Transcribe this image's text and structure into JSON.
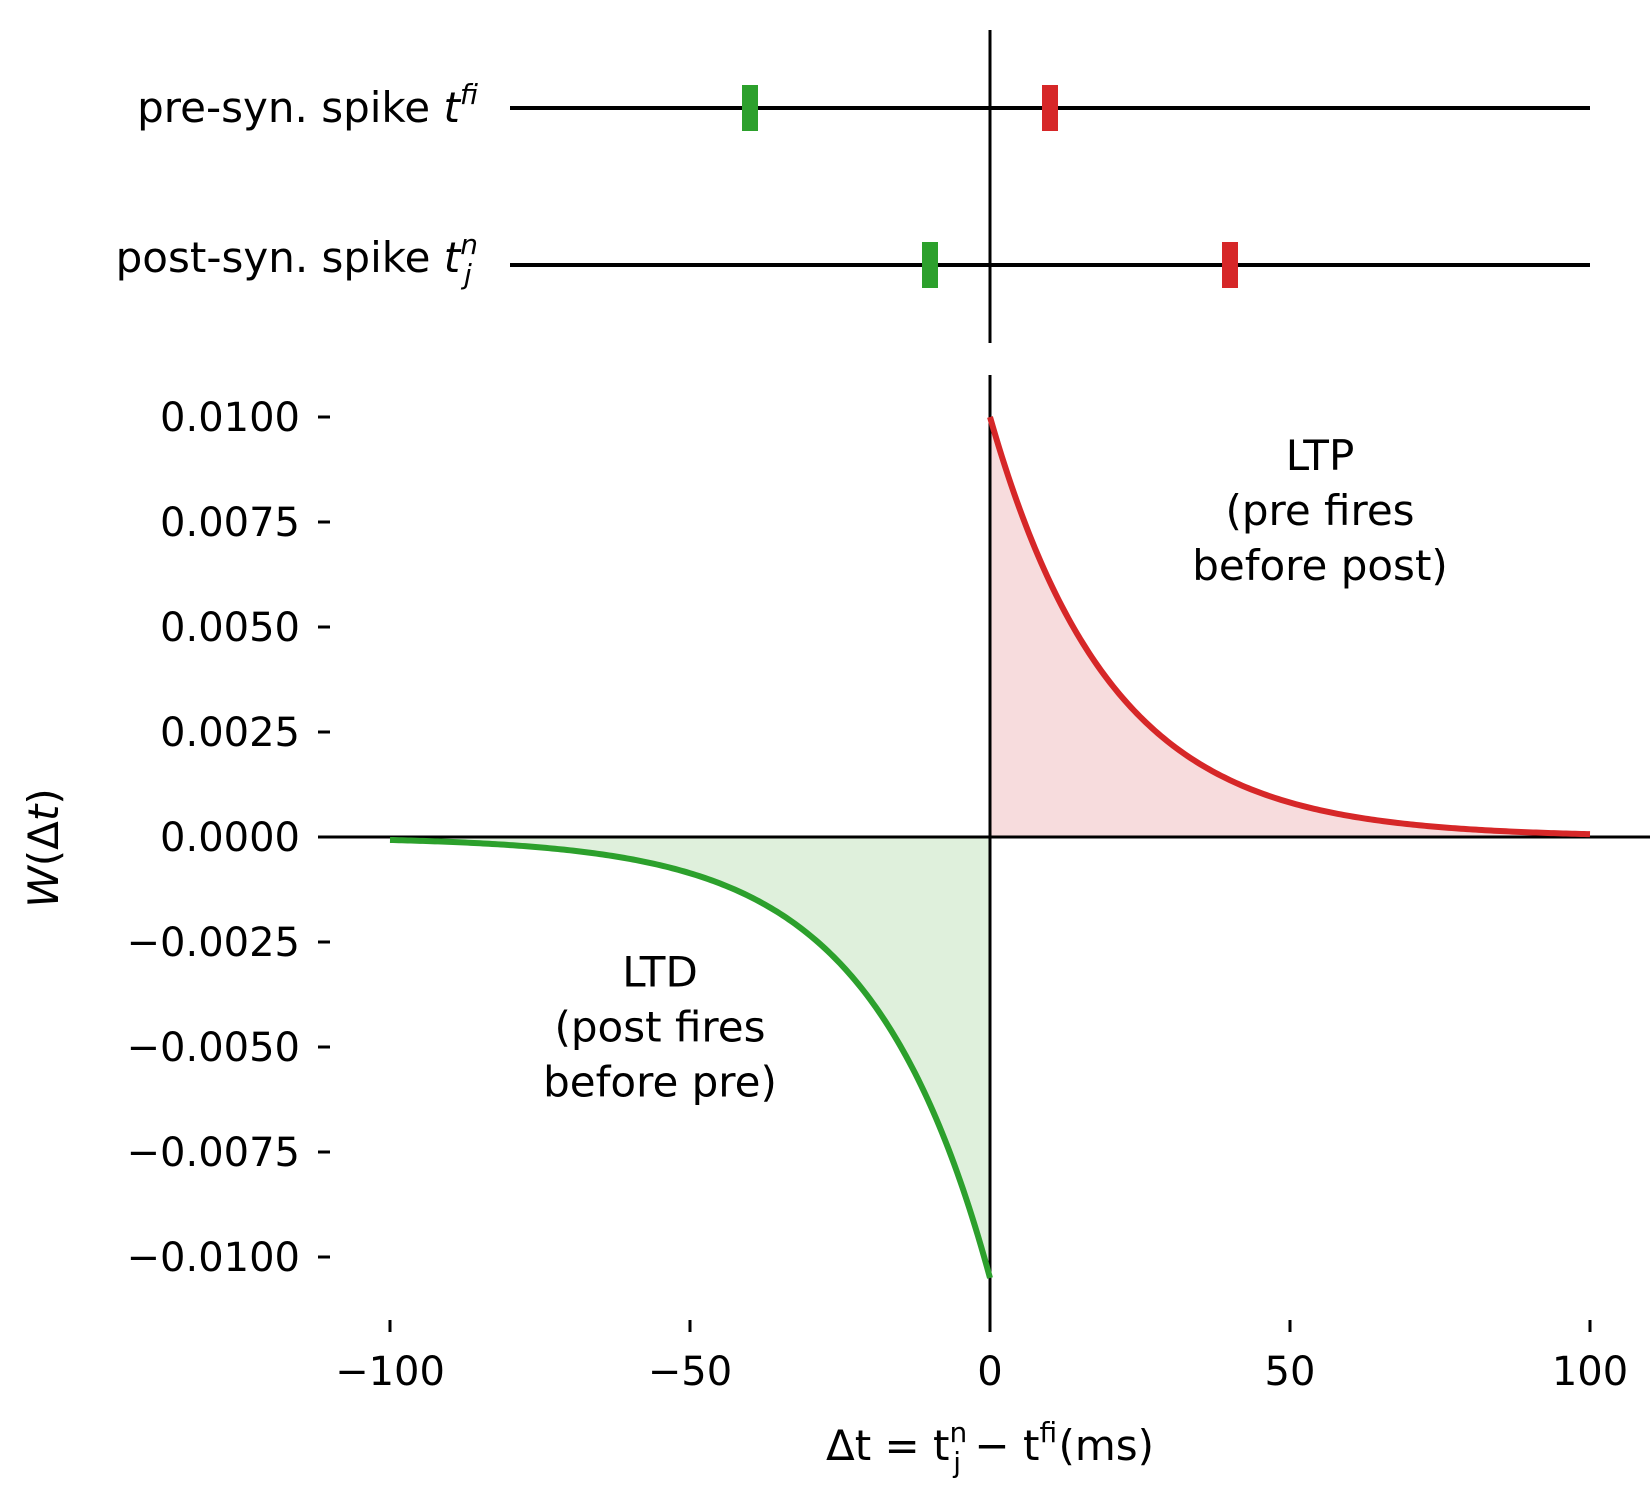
{
  "chart_data": [
    {
      "type": "raster",
      "panel": "spike-trains",
      "rows": [
        {
          "label_text": "pre-syn. spike ",
          "label_var": "t",
          "label_sup": "f",
          "label_sub": "i",
          "spikes": [
            {
              "t": -40,
              "color": "#2ca02c"
            },
            {
              "t": 10,
              "color": "#d62728"
            }
          ]
        },
        {
          "label_text": "post-syn. spike ",
          "label_var": "t",
          "label_sup": "n",
          "label_sub": "j",
          "spikes": [
            {
              "t": -10,
              "color": "#2ca02c"
            },
            {
              "t": 40,
              "color": "#d62728"
            }
          ]
        }
      ],
      "xlim": [
        -110,
        110
      ]
    },
    {
      "type": "area",
      "panel": "stdp-window",
      "xlim": [
        -110,
        110
      ],
      "ylim": [
        -0.011,
        0.011
      ],
      "xticks": [
        -100,
        -50,
        0,
        50,
        100
      ],
      "xtick_labels": [
        "−100",
        "−50",
        "0",
        "50",
        "100"
      ],
      "yticks": [
        0.01,
        0.0075,
        0.005,
        0.0025,
        0.0,
        -0.0025,
        -0.005,
        -0.0075,
        -0.01
      ],
      "ytick_labels": [
        "0.0100",
        "0.0075",
        "0.0050",
        "0.0025",
        "0.0000",
        "−0.0025",
        "−0.0050",
        "−0.0075",
        "−0.0100"
      ],
      "xlabel": {
        "pre": "Δt = t",
        "sup1": "n",
        "sub1": "j",
        "mid": " − t",
        "sup2": "f",
        "sub2": "i",
        "post": " (ms)"
      },
      "ylabel": "W(Δt)",
      "series": [
        {
          "name": "LTP",
          "color": "#d62728",
          "fill": "#f7dcdd",
          "A": 0.01,
          "tau": 20,
          "domain": [
            0,
            100
          ]
        },
        {
          "name": "LTD",
          "color": "#2ca02c",
          "fill": "#dff0dc",
          "A": -0.0105,
          "tau": 20,
          "domain": [
            -100,
            0
          ]
        }
      ],
      "annotations": [
        {
          "lines": [
            "LTP",
            "(pre fires",
            "before post)"
          ],
          "x": 55,
          "y": 0.0096
        },
        {
          "lines": [
            "LTD",
            "(post fires",
            "before pre)"
          ],
          "x": -55,
          "y": -0.0027
        }
      ]
    }
  ]
}
